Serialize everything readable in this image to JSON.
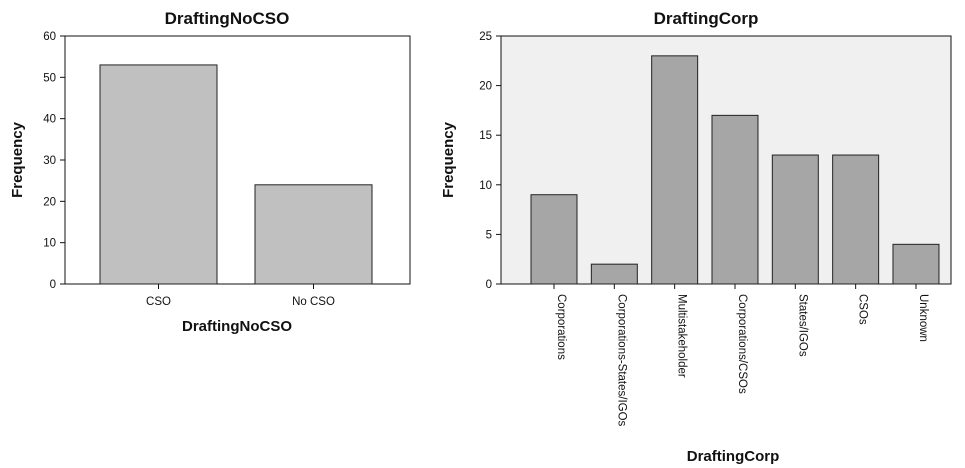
{
  "chart_data": [
    {
      "type": "bar",
      "title": "DraftingNoCSO",
      "xlabel": "DraftingNoCSO",
      "ylabel": "Frequency",
      "categories": [
        "CSO",
        "No CSO"
      ],
      "values": [
        53,
        24
      ],
      "ylim": [
        0,
        60
      ],
      "yticks": [
        0,
        10,
        20,
        30,
        40,
        50,
        60
      ],
      "tick_rotation": 0,
      "grid": false,
      "colors": {
        "bar": "#c0c0c0",
        "background": "#ffffff"
      }
    },
    {
      "type": "bar",
      "title": "DraftingCorp",
      "xlabel": "DraftingCorp",
      "ylabel": "Frequency",
      "categories": [
        "Corporations",
        "Corporations-States/IGOs",
        "Multistakeholder",
        "Corporations/CSOs",
        "States/IGOs",
        "CSOs",
        "Unknown"
      ],
      "values": [
        9,
        2,
        23,
        17,
        13,
        13,
        4
      ],
      "ylim": [
        0,
        25
      ],
      "yticks": [
        0,
        5,
        10,
        15,
        20,
        25
      ],
      "tick_rotation": 90,
      "grid": false,
      "colors": {
        "bar": "#a6a6a6",
        "background": "#f0f0f0"
      }
    }
  ]
}
